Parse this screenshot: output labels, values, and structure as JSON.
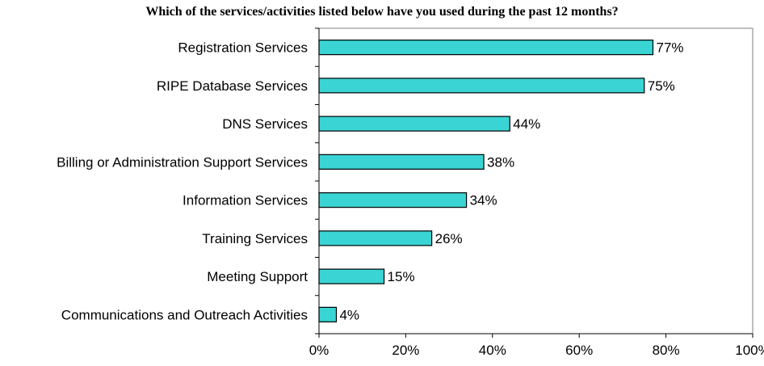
{
  "chart_data": {
    "type": "bar",
    "orientation": "horizontal",
    "title": "Which of the services/activities listed below have you used during the past 12 months?",
    "xlabel": "",
    "ylabel": "",
    "categories": [
      "Registration Services",
      "RIPE Database Services",
      "DNS Services",
      "Billing or Administration Support Services",
      "Information Services",
      "Training Services",
      "Meeting Support",
      "Communications and Outreach Activities"
    ],
    "values": [
      77,
      75,
      44,
      38,
      34,
      26,
      15,
      4
    ],
    "value_labels": [
      "77%",
      "75%",
      "44%",
      "38%",
      "34%",
      "26%",
      "15%",
      "4%"
    ],
    "xlim": [
      0,
      100
    ],
    "xticks": [
      "0%",
      "20%",
      "40%",
      "60%",
      "80%",
      "100%"
    ],
    "grid": false,
    "legend": "none",
    "bar_color": "#3ad4d4",
    "bar_edge_color": "#000000"
  }
}
